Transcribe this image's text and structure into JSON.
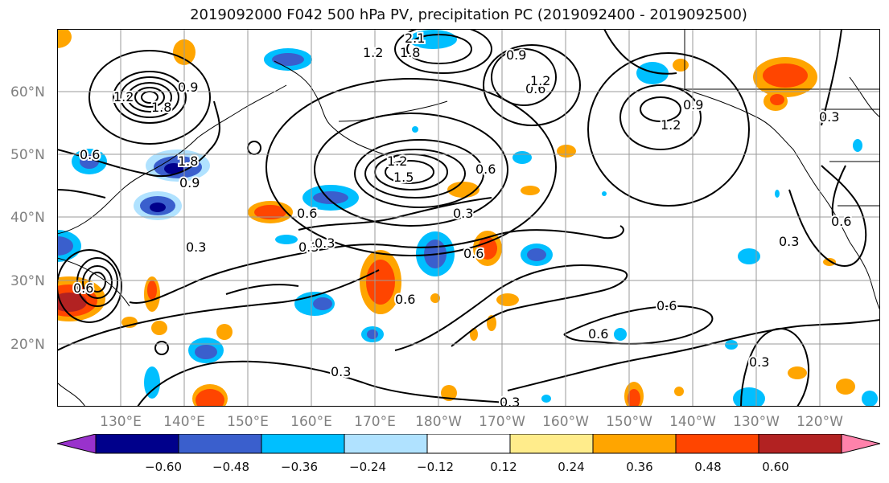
{
  "title": "2019092000 F042 500 hPa PV, precipitation PC (2019092400 - 2019092500)",
  "lat_labels": [
    "60°N",
    "50°N",
    "40°N",
    "30°N",
    "20°N"
  ],
  "lon_labels": [
    "130°E",
    "140°E",
    "150°E",
    "160°E",
    "170°E",
    "180°W",
    "170°W",
    "160°W",
    "150°W",
    "140°W",
    "130°W",
    "120°W"
  ],
  "colorbar": {
    "ticks": [
      "−0.60",
      "−0.48",
      "−0.36",
      "−0.24",
      "−0.12",
      "0.12",
      "0.24",
      "0.36",
      "0.48",
      "0.60"
    ],
    "colors": [
      "#9932cc",
      "#00008b",
      "#3a5fcd",
      "#00bfff",
      "#b0e2ff",
      "#ffffff",
      "#ffec8b",
      "#ffa500",
      "#ff4500",
      "#b22222",
      "#ff82ab"
    ]
  },
  "contour_labels": [
    "2.1",
    "1.8",
    "1.2",
    "0.9",
    "1.8",
    "0.9",
    "1.2",
    "0.6",
    "1.8",
    "0.9",
    "0.6",
    "0.6",
    "1.5",
    "1.2",
    "0.3",
    "0.3",
    "0.6",
    "0.3",
    "0.6",
    "0.6",
    "0.6",
    "0.3",
    "0.3",
    "0.3",
    "0.6",
    "0.6",
    "1.2",
    "0.9",
    "0.3",
    "0.3",
    "0.6",
    "0.3",
    "1.2"
  ]
}
